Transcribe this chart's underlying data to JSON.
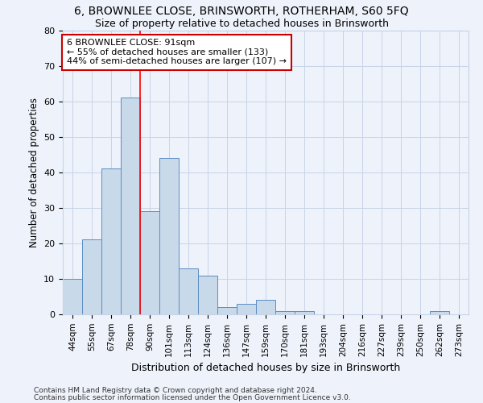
{
  "title1": "6, BROWNLEE CLOSE, BRINSWORTH, ROTHERHAM, S60 5FQ",
  "title2": "Size of property relative to detached houses in Brinsworth",
  "xlabel": "Distribution of detached houses by size in Brinsworth",
  "ylabel": "Number of detached properties",
  "bar_labels": [
    "44sqm",
    "55sqm",
    "67sqm",
    "78sqm",
    "90sqm",
    "101sqm",
    "113sqm",
    "124sqm",
    "136sqm",
    "147sqm",
    "159sqm",
    "170sqm",
    "181sqm",
    "193sqm",
    "204sqm",
    "216sqm",
    "227sqm",
    "239sqm",
    "250sqm",
    "262sqm",
    "273sqm"
  ],
  "bar_values": [
    10,
    21,
    41,
    61,
    29,
    44,
    13,
    11,
    2,
    3,
    4,
    1,
    1,
    0,
    0,
    0,
    0,
    0,
    0,
    1,
    0
  ],
  "bar_color": "#c8d9ea",
  "bar_edge_color": "#5b8ec4",
  "vline_x": 4,
  "annotation_text": "6 BROWNLEE CLOSE: 91sqm\n← 55% of detached houses are smaller (133)\n44% of semi-detached houses are larger (107) →",
  "annotation_box_color": "white",
  "annotation_box_edge": "#cc0000",
  "grid_color": "#c8d4e8",
  "ylim": [
    0,
    80
  ],
  "yticks": [
    0,
    10,
    20,
    30,
    40,
    50,
    60,
    70,
    80
  ],
  "footer1": "Contains HM Land Registry data © Crown copyright and database right 2024.",
  "footer2": "Contains public sector information licensed under the Open Government Licence v3.0.",
  "bg_color": "#eef2fa",
  "title1_fontsize": 10,
  "title2_fontsize": 9
}
